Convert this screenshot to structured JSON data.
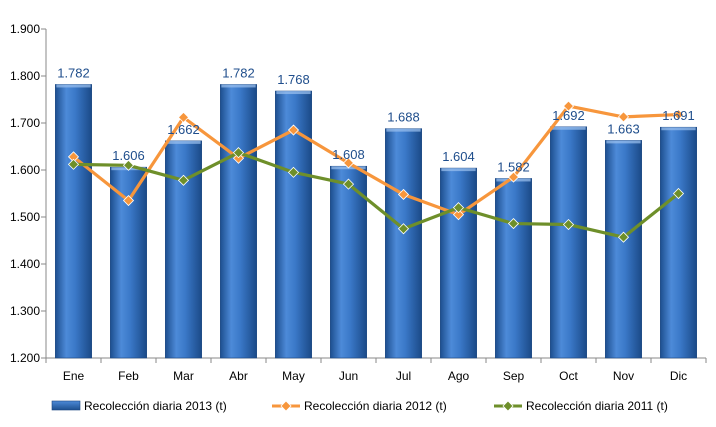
{
  "chart_data": {
    "type": "bar",
    "categories": [
      "Ene",
      "Feb",
      "Mar",
      "Abr",
      "May",
      "Jun",
      "Jul",
      "Ago",
      "Sep",
      "Oct",
      "Nov",
      "Dic"
    ],
    "ylim": [
      1200,
      1900
    ],
    "yticks": [
      1200,
      1300,
      1400,
      1500,
      1600,
      1700,
      1800,
      1900
    ],
    "ytick_labels": [
      "1.200",
      "1.300",
      "1.400",
      "1.500",
      "1.600",
      "1.700",
      "1.800",
      "1.900"
    ],
    "grid": false,
    "legend_position": "bottom",
    "series": [
      {
        "name": "Recolección diaria  2013 (t)",
        "kind": "bar",
        "color": "#2e6fbf",
        "values": [
          1782,
          1606,
          1662,
          1782,
          1768,
          1608,
          1688,
          1604,
          1582,
          1692,
          1663,
          1691
        ],
        "labels": [
          "1.782",
          "1.606",
          "1.662",
          "1.782",
          "1.768",
          "1.608",
          "1.688",
          "1.604",
          "1.582",
          "1.692",
          "1.663",
          "1.691"
        ]
      },
      {
        "name": "Recolección diaria  2012 (t)",
        "kind": "line",
        "color": "#f7963c",
        "values": [
          1628,
          1535,
          1712,
          1625,
          1685,
          1615,
          1548,
          1505,
          1585,
          1736,
          1713,
          1718
        ]
      },
      {
        "name": "Recolección diaria  2011 (t)",
        "kind": "line",
        "color": "#6e8f2a",
        "values": [
          1612,
          1610,
          1578,
          1637,
          1595,
          1570,
          1475,
          1520,
          1486,
          1484,
          1457,
          1550
        ]
      }
    ]
  }
}
